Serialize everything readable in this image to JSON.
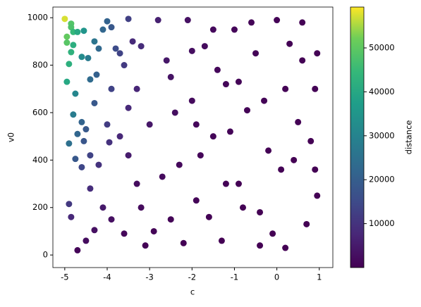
{
  "chart_data": {
    "type": "scatter",
    "x_label": "c",
    "y_label": "v0",
    "colorbar_label": "distance",
    "colormap": "viridis",
    "xlim": [
      -5.28,
      1.32
    ],
    "ylim": [
      -53,
      1045
    ],
    "clim": [
      0,
      59300
    ],
    "xticks": [
      -5,
      -4,
      -3,
      -2,
      -1,
      0,
      1
    ],
    "yticks": [
      0,
      200,
      400,
      600,
      800,
      1000
    ],
    "cticks": [
      10000,
      20000,
      30000,
      40000,
      50000
    ],
    "x": [
      -5.0,
      -4.95,
      -4.95,
      -4.85,
      -4.85,
      -4.8,
      -4.8,
      -4.9,
      -4.95,
      -4.85,
      -4.75,
      -4.8,
      -4.7,
      -4.55,
      -4.6,
      -4.45,
      -4.3,
      -4.4,
      -4.25,
      -4.2,
      -4.1,
      -4.0,
      -3.9,
      -3.8,
      -3.7,
      -3.5,
      -3.6,
      -3.9,
      -4.3,
      -4.7,
      -4.6,
      -4.9,
      -4.55,
      -4.75,
      -4.4,
      -4.5,
      -4.0,
      -3.95,
      -4.2,
      -4.6,
      -4.9,
      -4.85,
      -4.7,
      -4.5,
      -4.4,
      -4.3,
      -4.1,
      -3.9,
      -3.6,
      -3.7,
      -3.5,
      -3.4,
      -3.3,
      -3.2,
      -3.5,
      -3.3,
      -3.1,
      -3.0,
      -2.8,
      -2.6,
      -2.5,
      -2.3,
      -2.1,
      -2.0,
      -1.9,
      -1.7,
      -1.5,
      -1.3,
      -1.2,
      -1.0,
      -0.9,
      -0.7,
      -0.5,
      -0.4,
      -0.2,
      0.0,
      0.2,
      0.4,
      0.6,
      0.8,
      0.95,
      0.9,
      -2.9,
      -2.4,
      -2.2,
      -1.8,
      -1.6,
      -1.4,
      -1.1,
      -0.8,
      -0.6,
      -0.3,
      -0.1,
      0.1,
      0.3,
      0.5,
      0.7,
      0.9,
      -2.7,
      -2.0,
      -1.2,
      -0.4,
      0.6,
      0.95,
      -3.2,
      -2.5,
      -1.9,
      -0.9,
      0.2,
      -1.5
    ],
    "values": [
      995,
      920,
      895,
      975,
      960,
      940,
      885,
      805,
      730,
      855,
      680,
      592,
      940,
      945,
      835,
      830,
      900,
      740,
      760,
      870,
      950,
      985,
      960,
      870,
      850,
      995,
      800,
      700,
      640,
      510,
      560,
      470,
      480,
      405,
      420,
      530,
      550,
      475,
      380,
      370,
      215,
      160,
      20,
      60,
      280,
      105,
      200,
      150,
      90,
      500,
      620,
      900,
      700,
      880,
      420,
      300,
      40,
      550,
      990,
      820,
      150,
      380,
      990,
      650,
      230,
      880,
      500,
      60,
      720,
      950,
      300,
      610,
      850,
      180,
      440,
      990,
      700,
      400,
      820,
      480,
      850,
      360,
      100,
      600,
      50,
      420,
      160,
      780,
      520,
      200,
      980,
      650,
      90,
      360,
      890,
      560,
      130,
      700,
      330,
      860,
      300,
      40,
      980,
      250,
      200,
      750,
      550,
      730,
      30,
      950
    ],
    "color_values": [
      57400,
      50600,
      49200,
      48700,
      47900,
      44400,
      41800,
      42100,
      40100,
      42700,
      30800,
      27900,
      40300,
      35000,
      32200,
      27800,
      26000,
      23400,
      20700,
      22700,
      22200,
      21100,
      18300,
      15300,
      13300,
      12800,
      11500,
      13400,
      18500,
      21900,
      21600,
      24600,
      17800,
      18300,
      13300,
      18600,
      11800,
      9600,
      9900,
      14300,
      11200,
      8000,
      860,
      2100,
      8800,
      3000,
      4700,
      2900,
      1300,
      7800,
      8000,
      8100,
      7400,
      8600,
      5400,
      2200,
      340,
      4300,
      6300,
      4300,
      700,
      1500,
      3200,
      1900,
      600,
      1900,
      880,
      87,
      930,
      1000,
      290,
      480,
      550,
      105,
      210,
      390,
      220,
      105,
      175,
      84,
      130,
      57,
      700,
      2600,
      180,
      980,
      310,
      1240,
      610,
      170,
      690,
      340,
      39,
      127,
      257,
      131,
      25,
      112,
      1900,
      2500,
      390,
      23,
      210,
      38,
      1950,
      3500,
      1440,
      700,
      10,
      1670
    ]
  }
}
